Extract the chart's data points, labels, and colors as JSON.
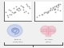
{
  "scatter1_x": [
    0.3,
    0.8,
    1.5,
    2.2,
    3.1,
    3.8,
    4.2,
    5.0,
    5.5,
    6.1,
    6.8,
    7.3,
    8.0,
    8.6,
    9.1,
    1.1,
    2.0,
    3.3,
    4.6,
    5.8,
    7.0,
    8.3,
    1.8,
    3.5,
    5.2,
    6.5,
    7.8,
    9.3,
    2.7,
    4.4
  ],
  "scatter1_y": [
    55,
    42,
    68,
    48,
    72,
    58,
    80,
    62,
    74,
    84,
    66,
    58,
    88,
    52,
    78,
    38,
    62,
    52,
    70,
    66,
    76,
    82,
    48,
    58,
    72,
    78,
    60,
    74,
    56,
    68
  ],
  "scatter2_x": [
    10,
    14,
    17,
    19,
    21,
    22,
    24,
    25,
    26,
    27,
    28,
    29,
    30,
    28,
    26,
    12,
    16,
    20,
    23,
    25,
    27,
    29,
    18,
    22,
    24,
    20,
    28,
    15,
    30,
    25
  ],
  "scatter2_y": [
    38,
    48,
    58,
    52,
    62,
    68,
    72,
    78,
    70,
    82,
    76,
    88,
    62,
    68,
    58,
    42,
    52,
    60,
    66,
    70,
    78,
    84,
    55,
    72,
    75,
    56,
    86,
    46,
    90,
    68
  ],
  "scatter_color": "#888888",
  "scatter_size": 1.5,
  "fig_bg": "#f0f0f0",
  "plot_bg": "#ffffff",
  "cochlea_color": "#8899cc",
  "cochlea_fill": "#aabbee",
  "brain_color": "#cc8899",
  "brain_fill": "#eebbc8",
  "label1_line1": "ECochG-TR",
  "label1_line2": "(Cochlear Health)",
  "label2_line1": "MoCA Score",
  "label2_line2": "(Cognition)",
  "bracket_color": "#333333",
  "text_color": "#444444"
}
